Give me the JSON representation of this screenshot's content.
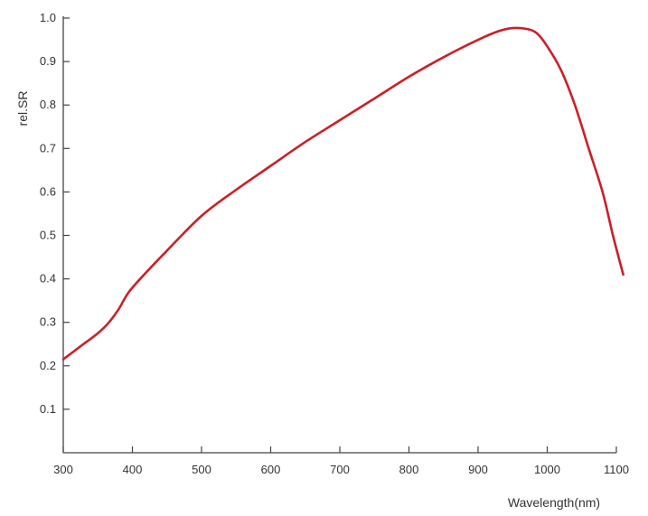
{
  "chart_data": {
    "type": "line",
    "title": "",
    "xlabel": "Wavelength(nm)",
    "ylabel": "rel.SR",
    "xlim": [
      300,
      1100
    ],
    "ylim": [
      0,
      1.0
    ],
    "grid": false,
    "x_ticks": [
      "300",
      "400",
      "500",
      "600",
      "700",
      "800",
      "900",
      "1000",
      "1100"
    ],
    "y_ticks": [
      "0.1",
      "0.2",
      "0.3",
      "0.4",
      "0.5",
      "0.6",
      "0.7",
      "0.8",
      "0.9",
      "1.0"
    ],
    "series": [
      {
        "color": "#cc1f27",
        "x": [
          300,
          325,
          350,
          365,
          380,
          395,
          420,
          450,
          500,
          550,
          600,
          650,
          700,
          750,
          800,
          850,
          900,
          930,
          950,
          970,
          985,
          1000,
          1020,
          1040,
          1060,
          1080,
          1095,
          1110
        ],
        "y": [
          0.215,
          0.245,
          0.275,
          0.298,
          0.33,
          0.37,
          0.415,
          0.465,
          0.545,
          0.605,
          0.66,
          0.715,
          0.765,
          0.815,
          0.865,
          0.91,
          0.95,
          0.97,
          0.977,
          0.975,
          0.965,
          0.935,
          0.88,
          0.8,
          0.7,
          0.6,
          0.5,
          0.41
        ]
      }
    ]
  }
}
